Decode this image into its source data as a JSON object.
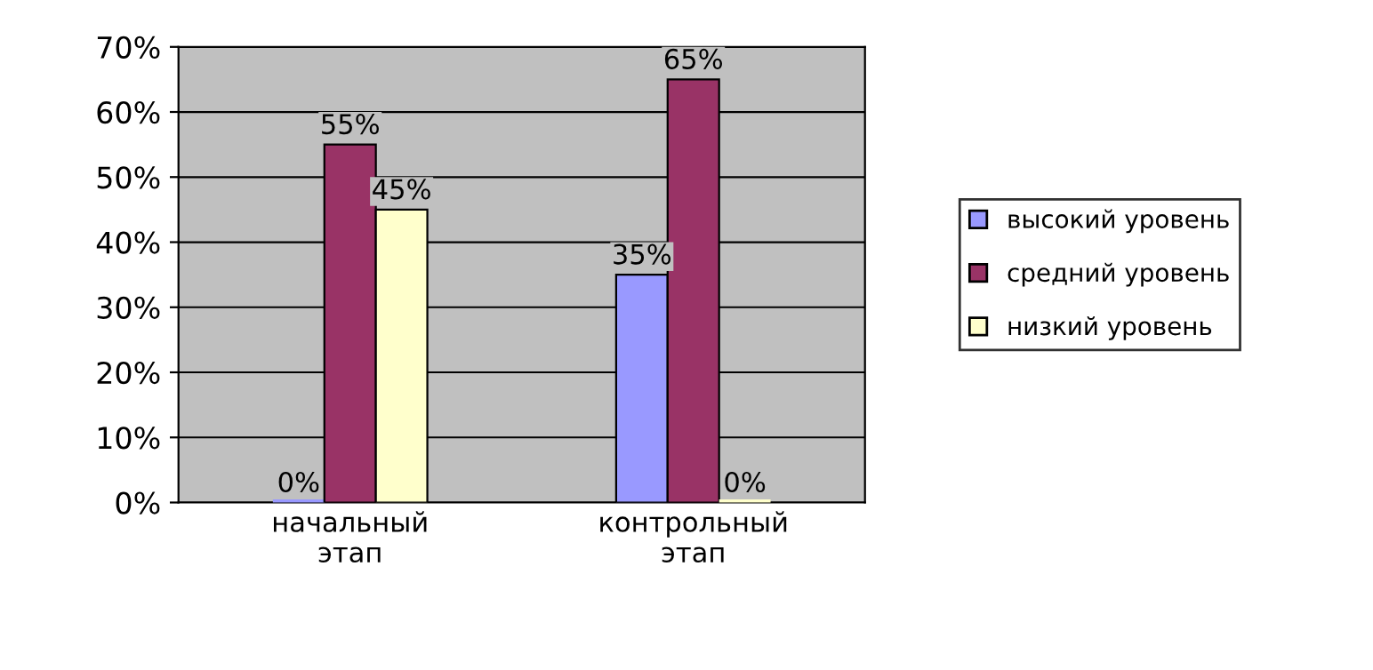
{
  "chart_data": {
    "type": "bar",
    "categories": [
      "начальный\nэтап",
      "контрольный\nэтап"
    ],
    "series": [
      {
        "name": "высокий уровень",
        "color": "#9999ff",
        "values": [
          0,
          35
        ],
        "value_labels": [
          "0%",
          "35%"
        ]
      },
      {
        "name": "средний уровень",
        "color": "#993366",
        "values": [
          55,
          65
        ],
        "value_labels": [
          "55%",
          "65%"
        ]
      },
      {
        "name": "низкий уровень",
        "color": "#ffffcc",
        "values": [
          45,
          0
        ],
        "value_labels": [
          "45%",
          "0%"
        ]
      }
    ],
    "ylim": [
      0,
      70
    ],
    "yticks": [
      {
        "value": 0,
        "label": "0%"
      },
      {
        "value": 10,
        "label": "10%"
      },
      {
        "value": 20,
        "label": "20%"
      },
      {
        "value": 30,
        "label": "30%"
      },
      {
        "value": 40,
        "label": "40%"
      },
      {
        "value": 50,
        "label": "50%"
      },
      {
        "value": 60,
        "label": "60%"
      },
      {
        "value": 70,
        "label": "70%"
      }
    ],
    "grid": "y",
    "legend": "right"
  }
}
